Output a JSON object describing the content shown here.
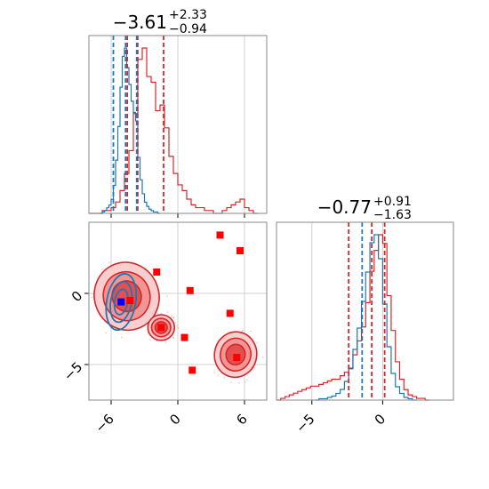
{
  "colors": {
    "red": "#d62728",
    "blue": "#1f77b4",
    "marker_red": "#ff0000",
    "marker_blue": "#0000ff",
    "grid": "#d0d0d0",
    "frame": "#888888"
  },
  "chart_data": [
    {
      "id": "param1-marginal",
      "type": "histogram-step",
      "title": {
        "value": "−3.61",
        "plus": "+2.33",
        "minus": "−0.94"
      },
      "xlim": [
        -8,
        8
      ],
      "grid": true,
      "y_ticks_shown": false,
      "x_ticklabels_shown": false,
      "vlines": {
        "red": [
          -4.55,
          -3.61,
          -1.28
        ],
        "blue": [
          -5.8,
          -4.7,
          -3.7
        ]
      },
      "series": [
        {
          "color": "red",
          "x": [
            -8.0,
            -7.6,
            -7.2,
            -6.8,
            -6.4,
            -6.0,
            -5.6,
            -5.2,
            -4.8,
            -4.4,
            -4.0,
            -3.6,
            -3.2,
            -2.8,
            -2.4,
            -2.0,
            -1.6,
            -1.2,
            -0.8,
            -0.4,
            0.0,
            0.4,
            0.8,
            1.2,
            1.6,
            2.0,
            2.4,
            2.8,
            3.2,
            3.6,
            4.0,
            4.4,
            4.8,
            5.2,
            5.6,
            6.0,
            6.4,
            6.8
          ],
          "values": [
            0,
            0,
            0,
            1,
            1,
            2,
            4,
            8,
            14,
            22,
            35,
            54,
            58,
            48,
            46,
            36,
            38,
            30,
            20,
            14,
            10,
            8,
            5,
            3,
            2,
            2,
            1,
            1,
            0,
            0,
            1,
            2,
            3,
            4,
            5,
            2,
            1,
            0
          ]
        },
        {
          "color": "blue",
          "x": [
            -7.0,
            -6.8,
            -6.6,
            -6.4,
            -6.2,
            -6.0,
            -5.8,
            -5.6,
            -5.4,
            -5.2,
            -5.0,
            -4.8,
            -4.6,
            -4.4,
            -4.2,
            -4.0,
            -3.8,
            -3.6,
            -3.4,
            -3.2,
            -3.0,
            -2.8,
            -2.6,
            -2.4,
            -2.2,
            -2.0,
            -1.8
          ],
          "values": [
            0,
            1,
            2,
            4,
            6,
            10,
            20,
            38,
            62,
            90,
            112,
            118,
            104,
            92,
            80,
            72,
            66,
            40,
            24,
            14,
            8,
            5,
            3,
            2,
            1,
            1,
            0
          ]
        }
      ]
    },
    {
      "id": "param2-marginal",
      "type": "histogram-step",
      "title": {
        "value": "−0.77",
        "plus": "+0.91",
        "minus": "−1.63"
      },
      "xlim": [
        -7.5,
        5
      ],
      "xticks": [
        -5,
        0
      ],
      "grid": true,
      "y_ticks_shown": false,
      "vlines": {
        "red": [
          -2.4,
          -0.77,
          0.14
        ],
        "blue": [
          -1.45
        ]
      },
      "series": [
        {
          "color": "red",
          "x": [
            -7.5,
            -7.2,
            -6.9,
            -6.6,
            -6.3,
            -6.0,
            -5.7,
            -5.4,
            -5.1,
            -4.8,
            -4.5,
            -4.2,
            -3.9,
            -3.6,
            -3.3,
            -3.0,
            -2.7,
            -2.4,
            -2.1,
            -1.8,
            -1.5,
            -1.2,
            -0.9,
            -0.6,
            -0.3,
            0.0,
            0.3,
            0.6,
            0.9,
            1.2,
            1.5,
            1.8,
            2.1,
            2.4,
            2.7,
            3.0
          ],
          "values": [
            0,
            1,
            2,
            3,
            4,
            5,
            6,
            7,
            8,
            8,
            9,
            10,
            11,
            12,
            12,
            14,
            16,
            18,
            26,
            34,
            42,
            56,
            74,
            86,
            95,
            90,
            60,
            40,
            22,
            12,
            6,
            3,
            2,
            1,
            1,
            0
          ]
        },
        {
          "color": "blue",
          "x": [
            -4.8,
            -4.5,
            -4.2,
            -3.9,
            -3.6,
            -3.3,
            -3.0,
            -2.7,
            -2.4,
            -2.1,
            -1.8,
            -1.5,
            -1.2,
            -0.9,
            -0.6,
            -0.3,
            0.0,
            0.3,
            0.6,
            0.9,
            1.2,
            1.5,
            1.8,
            2.1
          ],
          "values": [
            0,
            1,
            1,
            2,
            3,
            5,
            8,
            14,
            24,
            38,
            54,
            74,
            96,
            118,
            124,
            106,
            72,
            40,
            20,
            10,
            5,
            2,
            1,
            0
          ]
        }
      ]
    },
    {
      "id": "joint-2d",
      "type": "contour-scatter",
      "xlim": [
        -8,
        8
      ],
      "ylim": [
        -7.5,
        5
      ],
      "xticks": [
        -6,
        0,
        6
      ],
      "yticks": [
        0,
        -5
      ],
      "grid": true,
      "red_regions": [
        {
          "cx": -4.6,
          "cy": -0.2,
          "rx": 2.9,
          "ry": 2.4,
          "tilt": -20,
          "levels": 3
        },
        {
          "cx": -1.5,
          "cy": -2.4,
          "rx": 1.2,
          "ry": 0.9,
          "tilt": 0,
          "levels": 3
        },
        {
          "cx": 5.2,
          "cy": -4.3,
          "rx": 1.9,
          "ry": 1.6,
          "tilt": 10,
          "levels": 3
        }
      ],
      "blue_regions": [
        {
          "cx": -5.1,
          "cy": -0.6,
          "rx": 1.3,
          "ry": 2.0,
          "tilt": 10,
          "levels": 3
        }
      ],
      "red_squares": {
        "x": [
          3.8,
          5.6,
          -1.9,
          1.1,
          4.7,
          0.6,
          1.3,
          5.3,
          -1.5,
          -4.3
        ],
        "y": [
          4.1,
          3.0,
          1.5,
          0.2,
          -1.4,
          -3.1,
          -5.4,
          -4.5,
          -2.4,
          -0.5
        ]
      },
      "blue_square": {
        "x": -5.1,
        "y": -0.6
      }
    }
  ]
}
